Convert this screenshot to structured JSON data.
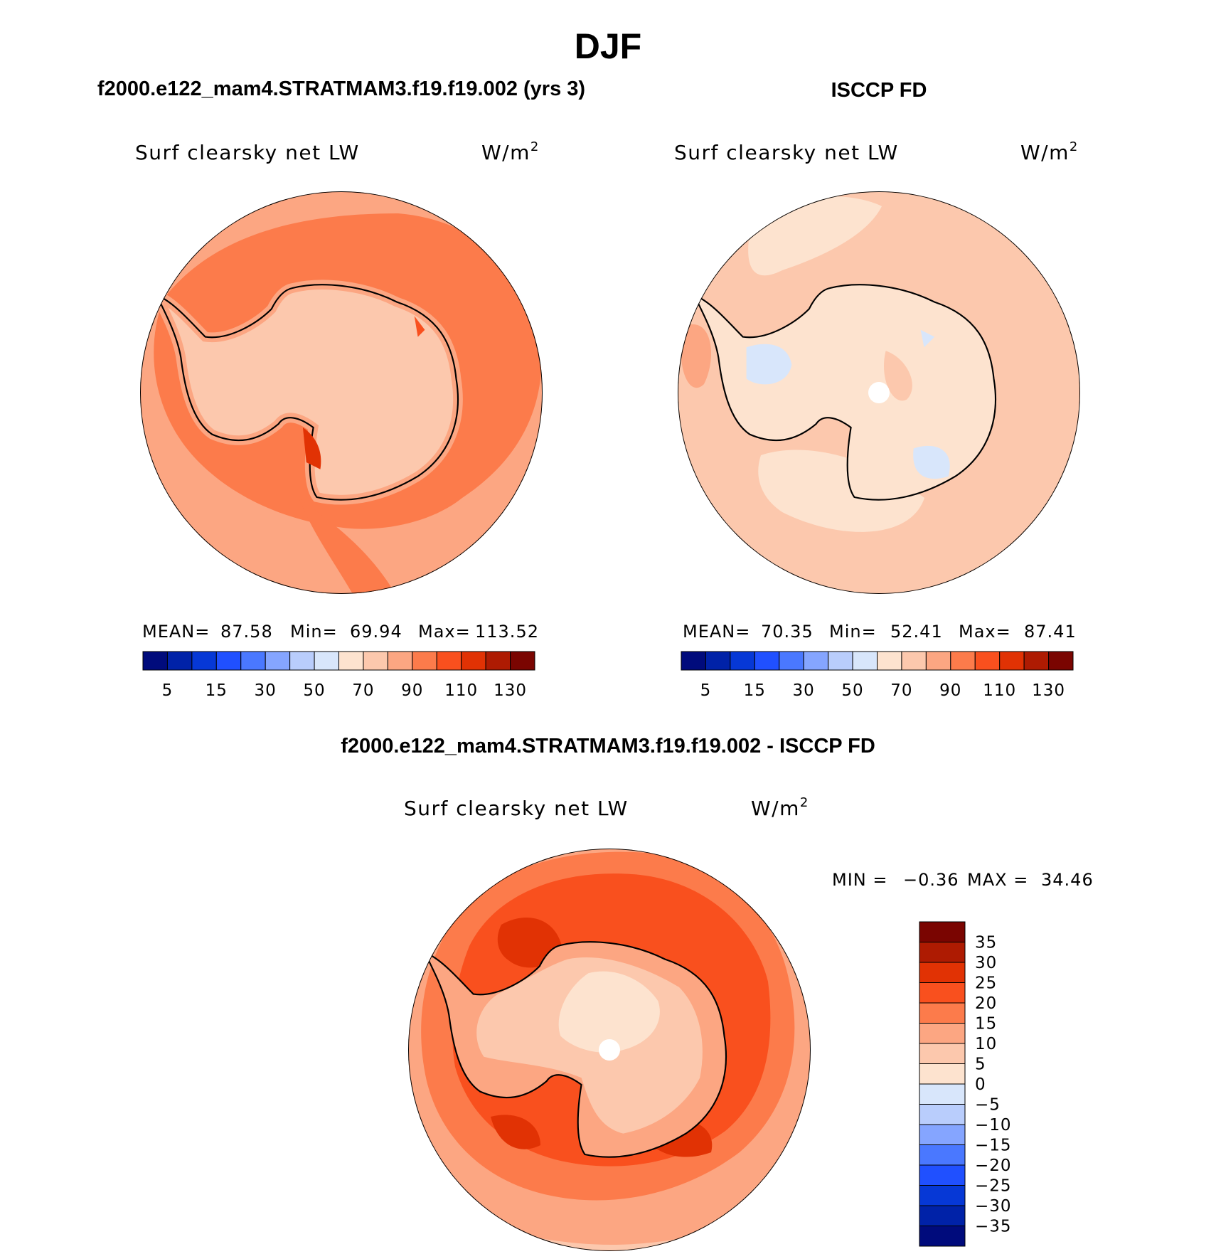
{
  "figure": {
    "title": "DJF",
    "bottom_title": "f2000.e122_mam4.STRATMAM3.f19.f19.002 - ISCCP FD"
  },
  "panels": [
    {
      "id": "model",
      "header": "f2000.e122_mam4.STRATMAM3.f19.f19.002 (yrs 3)",
      "variable": "Surf clearsky net LW",
      "units_base": "W/m",
      "units_sup": "2",
      "stats": {
        "mean_label": "MEAN=",
        "mean": "87.58",
        "min_label": "Min=",
        "min": "69.94",
        "max_label": "Max=",
        "max": "113.52"
      }
    },
    {
      "id": "obs",
      "header": "ISCCP FD",
      "variable": "Surf clearsky net LW",
      "units_base": "W/m",
      "units_sup": "2",
      "stats": {
        "mean_label": "MEAN=",
        "mean": "70.35",
        "min_label": "Min=",
        "min": "52.41",
        "max_label": "Max=",
        "max": "87.41"
      }
    },
    {
      "id": "diff",
      "variable": "Surf clearsky net LW",
      "units_base": "W/m",
      "units_sup": "2",
      "stats": {
        "min_label": "MIN =",
        "min": "−0.36",
        "max_label": "MAX =",
        "max": "34.46"
      }
    }
  ],
  "colorbar_abs": {
    "colors": [
      "#000b7c",
      "#0022a8",
      "#0638d6",
      "#2050ff",
      "#4a78ff",
      "#85a5ff",
      "#b9cdfc",
      "#d8e6fb",
      "#fde3cf",
      "#fcc8ad",
      "#fca682",
      "#fc7b4b",
      "#f9501e",
      "#e13204",
      "#ae1b02",
      "#7a0501"
    ],
    "tick_labels": [
      "5",
      "15",
      "30",
      "50",
      "70",
      "90",
      "110",
      "130"
    ]
  },
  "colorbar_diff": {
    "colors": [
      "#000b7c",
      "#0022a8",
      "#0638d6",
      "#2050ff",
      "#4a78ff",
      "#85a5ff",
      "#b9cdfc",
      "#d8e6fb",
      "#fde3cf",
      "#fcc8ad",
      "#fca682",
      "#fc7b4b",
      "#f9501e",
      "#e13204",
      "#ae1b02",
      "#7a0501"
    ],
    "tick_labels": [
      "35",
      "30",
      "25",
      "20",
      "15",
      "10",
      "5",
      "0",
      "−5",
      "−10",
      "−15",
      "−20",
      "−25",
      "−30",
      "−35"
    ]
  }
}
